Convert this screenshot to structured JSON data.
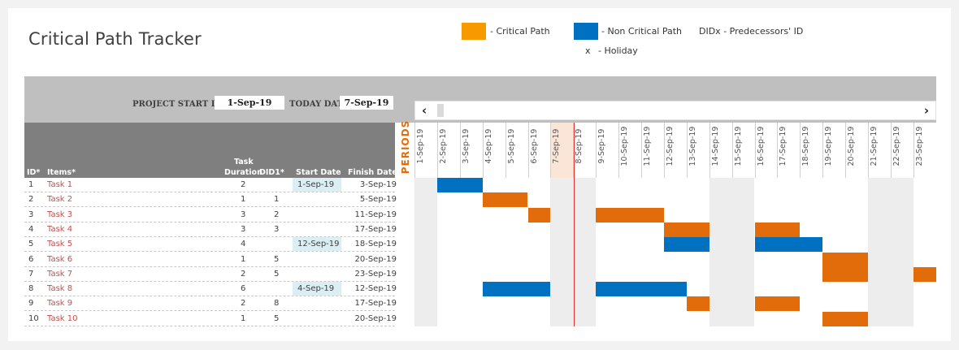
{
  "title": "Critical Path Tracker",
  "legend": {
    "critical_label": "- Critical Path",
    "noncritical_label": "- Non Critical Path",
    "didx_label": "DIDx - Predecessors' ID",
    "holiday_marker": "x",
    "holiday_label": "- Holiday",
    "critical_color": "#f79a00",
    "noncritical_color": "#0070c0"
  },
  "header": {
    "project_start_label": "PROJECT START DATE",
    "project_start_value": "1-Sep-19",
    "today_label": "TODAY DATE",
    "today_value": "7-Sep-19"
  },
  "columns": {
    "id": "ID*",
    "items": "Items*",
    "duration_line1": "Task",
    "duration_line2": "Duration",
    "did": "DID1*",
    "start": "Start Date",
    "finish": "Finish Date"
  },
  "periods_label": "PERIODS",
  "scroll": {
    "left_arrow": "‹",
    "right_arrow": "›"
  },
  "dates": [
    "1-Sep-19",
    "2-Sep-19",
    "3-Sep-19",
    "4-Sep-19",
    "5-Sep-19",
    "6-Sep-19",
    "7-Sep-19",
    "8-Sep-19",
    "9-Sep-19",
    "10-Sep-19",
    "11-Sep-19",
    "12-Sep-19",
    "13-Sep-19",
    "14-Sep-19",
    "15-Sep-19",
    "16-Sep-19",
    "17-Sep-19",
    "18-Sep-19",
    "19-Sep-19",
    "20-Sep-19",
    "21-Sep-19",
    "22-Sep-19",
    "23-Sep-19"
  ],
  "weekend_days": [
    1,
    7,
    8,
    14,
    15,
    21,
    22
  ],
  "today_day": 7,
  "tasks": [
    {
      "id": "1",
      "name": "Task 1",
      "duration": "2",
      "did": "",
      "start": "1-Sep-19",
      "finish": "3-Sep-19",
      "bars": [
        {
          "from": 2,
          "to": 3,
          "critical": false
        }
      ]
    },
    {
      "id": "2",
      "name": "Task 2",
      "duration": "1",
      "did": "1",
      "start": "",
      "finish": "5-Sep-19",
      "bars": [
        {
          "from": 4,
          "to": 5,
          "critical": true
        }
      ]
    },
    {
      "id": "3",
      "name": "Task 3",
      "duration": "3",
      "did": "2",
      "start": "",
      "finish": "11-Sep-19",
      "bars": [
        {
          "from": 6,
          "to": 6,
          "critical": true
        },
        {
          "from": 9,
          "to": 11,
          "critical": true
        }
      ]
    },
    {
      "id": "4",
      "name": "Task 4",
      "duration": "3",
      "did": "3",
      "start": "",
      "finish": "17-Sep-19",
      "bars": [
        {
          "from": 12,
          "to": 13,
          "critical": true
        },
        {
          "from": 16,
          "to": 17,
          "critical": true
        }
      ]
    },
    {
      "id": "5",
      "name": "Task 5",
      "duration": "4",
      "did": "",
      "start": "12-Sep-19",
      "finish": "18-Sep-19",
      "bars": [
        {
          "from": 12,
          "to": 13,
          "critical": false
        },
        {
          "from": 16,
          "to": 18,
          "critical": false
        }
      ]
    },
    {
      "id": "6",
      "name": "Task 6",
      "duration": "1",
      "did": "5",
      "start": "",
      "finish": "20-Sep-19",
      "bars": [
        {
          "from": 19,
          "to": 20,
          "critical": true
        }
      ]
    },
    {
      "id": "7",
      "name": "Task 7",
      "duration": "2",
      "did": "5",
      "start": "",
      "finish": "23-Sep-19",
      "bars": [
        {
          "from": 19,
          "to": 20,
          "critical": true
        },
        {
          "from": 23,
          "to": 23,
          "critical": true
        }
      ]
    },
    {
      "id": "8",
      "name": "Task 8",
      "duration": "6",
      "did": "",
      "start": "4-Sep-19",
      "finish": "12-Sep-19",
      "bars": [
        {
          "from": 4,
          "to": 6,
          "critical": false
        },
        {
          "from": 9,
          "to": 12,
          "critical": false
        }
      ]
    },
    {
      "id": "9",
      "name": "Task 9",
      "duration": "2",
      "did": "8",
      "start": "",
      "finish": "17-Sep-19",
      "bars": [
        {
          "from": 13,
          "to": 13,
          "critical": true
        },
        {
          "from": 16,
          "to": 17,
          "critical": true
        }
      ]
    },
    {
      "id": "10",
      "name": "Task 10",
      "duration": "1",
      "did": "5",
      "start": "",
      "finish": "20-Sep-19",
      "bars": [
        {
          "from": 19,
          "to": 20,
          "critical": true
        }
      ]
    }
  ]
}
